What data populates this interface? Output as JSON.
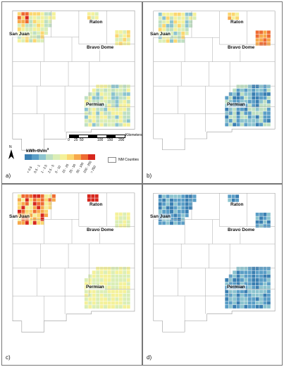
{
  "panels": [
    {
      "id": "a",
      "letter": "a)",
      "scheme": "a"
    },
    {
      "id": "b",
      "letter": "b)",
      "scheme": "b"
    },
    {
      "id": "c",
      "letter": "c)",
      "scheme": "c"
    },
    {
      "id": "d",
      "letter": "d)",
      "scheme": "d"
    }
  ],
  "regions": {
    "san_juan": "San Juan",
    "raton": "Raton",
    "bravo_dome": "Bravo Dome",
    "permian": "Permian"
  },
  "legend": {
    "north": "N",
    "title": "kWh-th/m",
    "title_sup": "3",
    "classes": [
      "< 0.5",
      "0.5 - 1",
      "1 - 2.5",
      "2.5 - 5",
      "5 - 10",
      "10 - 25",
      "25 - 50",
      "50 - 100",
      "100 - 250",
      "> 250"
    ],
    "colors": [
      "#3a7fb2",
      "#5a9ec6",
      "#8cc4cf",
      "#bfe0c2",
      "#dbeeb6",
      "#f4f19a",
      "#fbd770",
      "#f7a84b",
      "#ee6b32",
      "#d7271d"
    ],
    "counties_label": "NM Counties"
  },
  "scale": {
    "units": "Kilometers",
    "ticks": [
      "0",
      "25",
      "50",
      "100",
      "150",
      "200"
    ]
  }
}
